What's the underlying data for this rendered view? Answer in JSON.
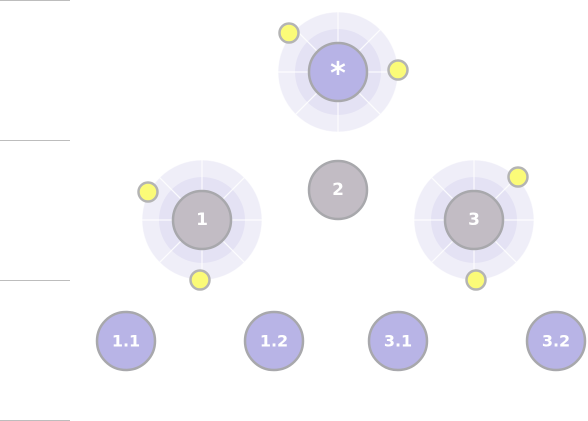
{
  "levels": [
    {
      "label": "",
      "nodes": [
        {
          "label": "*",
          "selected": true,
          "handles": 2
        }
      ]
    },
    {
      "label": "",
      "nodes": [
        {
          "label": "1",
          "selected": true,
          "handles": 2
        },
        {
          "label": "2",
          "selected": false,
          "handles": 0
        },
        {
          "label": "3",
          "selected": true,
          "handles": 2
        }
      ]
    },
    {
      "label": "",
      "nodes": [
        {
          "label": "1.1",
          "selected": false,
          "handles": 0
        },
        {
          "label": "1.2",
          "selected": false,
          "handles": 0
        },
        {
          "label": "3.1",
          "selected": false,
          "handles": 0
        },
        {
          "label": "3.2",
          "selected": false,
          "handles": 0
        }
      ]
    }
  ],
  "colors": {
    "root_fill": "#b7b3e6",
    "node_fill_grey": "#c2bcc4",
    "leaf_fill": "#b8b4e6",
    "node_border": "#a8a8ac",
    "halo_outer": "#efeef8",
    "halo_mid": "#e4e2f4",
    "halo_inner": "#d8d5ef",
    "handle_fill": "#fbfb78",
    "handle_stroke": "#b4b4b4",
    "divider": "#bdbdbd"
  }
}
